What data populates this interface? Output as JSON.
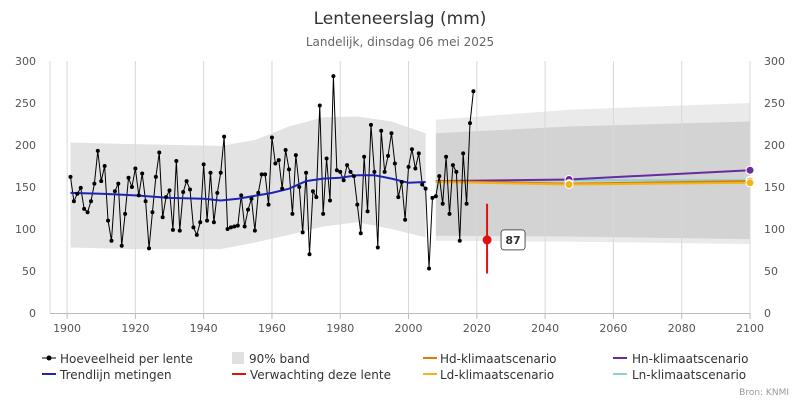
{
  "chart_data": {
    "type": "line",
    "title": "Lenteneerslag (mm)",
    "subtitle": "Landelijk, dinsdag 06 mei 2025",
    "source": "Bron: KNMI",
    "xlim": [
      1895,
      2100
    ],
    "ylim": [
      0,
      300
    ],
    "x_ticks": [
      1900,
      1920,
      1940,
      1960,
      1980,
      2000,
      2020,
      2040,
      2060,
      2080,
      2100
    ],
    "y_ticks": [
      0,
      50,
      100,
      150,
      200,
      250,
      300
    ],
    "grid": "vertical",
    "legend": [
      {
        "key": "obs",
        "label": "Hoeveelheid per lente"
      },
      {
        "key": "trend",
        "label": "Trendlijn metingen"
      },
      {
        "key": "band",
        "label": "90% band"
      },
      {
        "key": "forecast",
        "label": "Verwachting deze lente"
      },
      {
        "key": "hd",
        "label": "Hd-klimaatscenario"
      },
      {
        "key": "ld",
        "label": "Ld-klimaatscenario"
      },
      {
        "key": "hn",
        "label": "Hn-klimaatscenario"
      },
      {
        "key": "ln",
        "label": "Ln-klimaatscenario"
      }
    ],
    "colors": {
      "obs": "#000000",
      "trend": "#1f23b5",
      "band": "#e0e0e0",
      "forecast": "#dd1111",
      "hd": "#e07b00",
      "ld": "#f0b51a",
      "hn": "#6a2aa0",
      "ln": "#8ccfce"
    },
    "observations": {
      "start_year": 1901,
      "values": [
        162,
        133,
        142,
        149,
        124,
        120,
        133,
        154,
        193,
        157,
        175,
        110,
        86,
        145,
        154,
        80,
        118,
        161,
        150,
        172,
        140,
        166,
        133,
        77,
        120,
        162,
        191,
        114,
        138,
        146,
        99,
        181,
        98,
        144,
        157,
        147,
        102,
        93,
        108,
        177,
        110,
        167,
        108,
        143,
        167,
        210,
        100,
        102,
        103,
        104,
        140,
        103,
        123,
        136,
        98,
        143,
        165,
        165,
        129,
        209,
        178,
        182,
        148,
        194,
        171,
        118,
        188,
        150,
        96,
        167,
        70,
        145,
        138,
        247,
        118,
        184,
        134,
        282,
        170,
        168,
        158,
        176,
        168,
        163,
        129,
        95,
        186,
        121,
        224,
        168,
        78,
        217,
        168,
        187,
        214,
        178,
        138,
        156,
        111,
        174,
        195,
        172,
        190,
        153,
        148,
        53,
        137,
        139,
        163,
        130,
        186,
        118,
        176,
        168,
        86,
        190,
        130,
        226,
        264
      ]
    },
    "trend": {
      "x": [
        1901,
        1910,
        1920,
        1930,
        1940,
        1945,
        1950,
        1960,
        1965,
        1970,
        1975,
        1980,
        1985,
        1990,
        1995,
        2000,
        2005
      ],
      "y": [
        143,
        142,
        140,
        137,
        136,
        134,
        136,
        143,
        148,
        157,
        160,
        161,
        164,
        164,
        160,
        155,
        156
      ]
    },
    "band_historic": {
      "x": [
        1901,
        1920,
        1945,
        1955,
        1965,
        1975,
        1985,
        1995,
        2005
      ],
      "upper": [
        203,
        201,
        199,
        206,
        222,
        233,
        234,
        228,
        214
      ],
      "lower": [
        78,
        76,
        76,
        84,
        93,
        103,
        108,
        100,
        90
      ]
    },
    "band_future": {
      "x": [
        2008,
        2047,
        2100
      ],
      "outer_upper": [
        230,
        242,
        250
      ],
      "inner_upper": [
        214,
        222,
        228
      ],
      "inner_lower": [
        92,
        91,
        88
      ],
      "outer_lower": [
        86,
        85,
        82
      ]
    },
    "forecast": {
      "year": 2023,
      "value": 87,
      "label": "87",
      "low": 47,
      "high": 130
    },
    "scenarios": {
      "x": [
        2008,
        2047,
        2100
      ],
      "hd": [
        157,
        154,
        157
      ],
      "ld": [
        156,
        153,
        155
      ],
      "hn": [
        157,
        159,
        170
      ],
      "ln": [
        157,
        158,
        158
      ]
    }
  }
}
